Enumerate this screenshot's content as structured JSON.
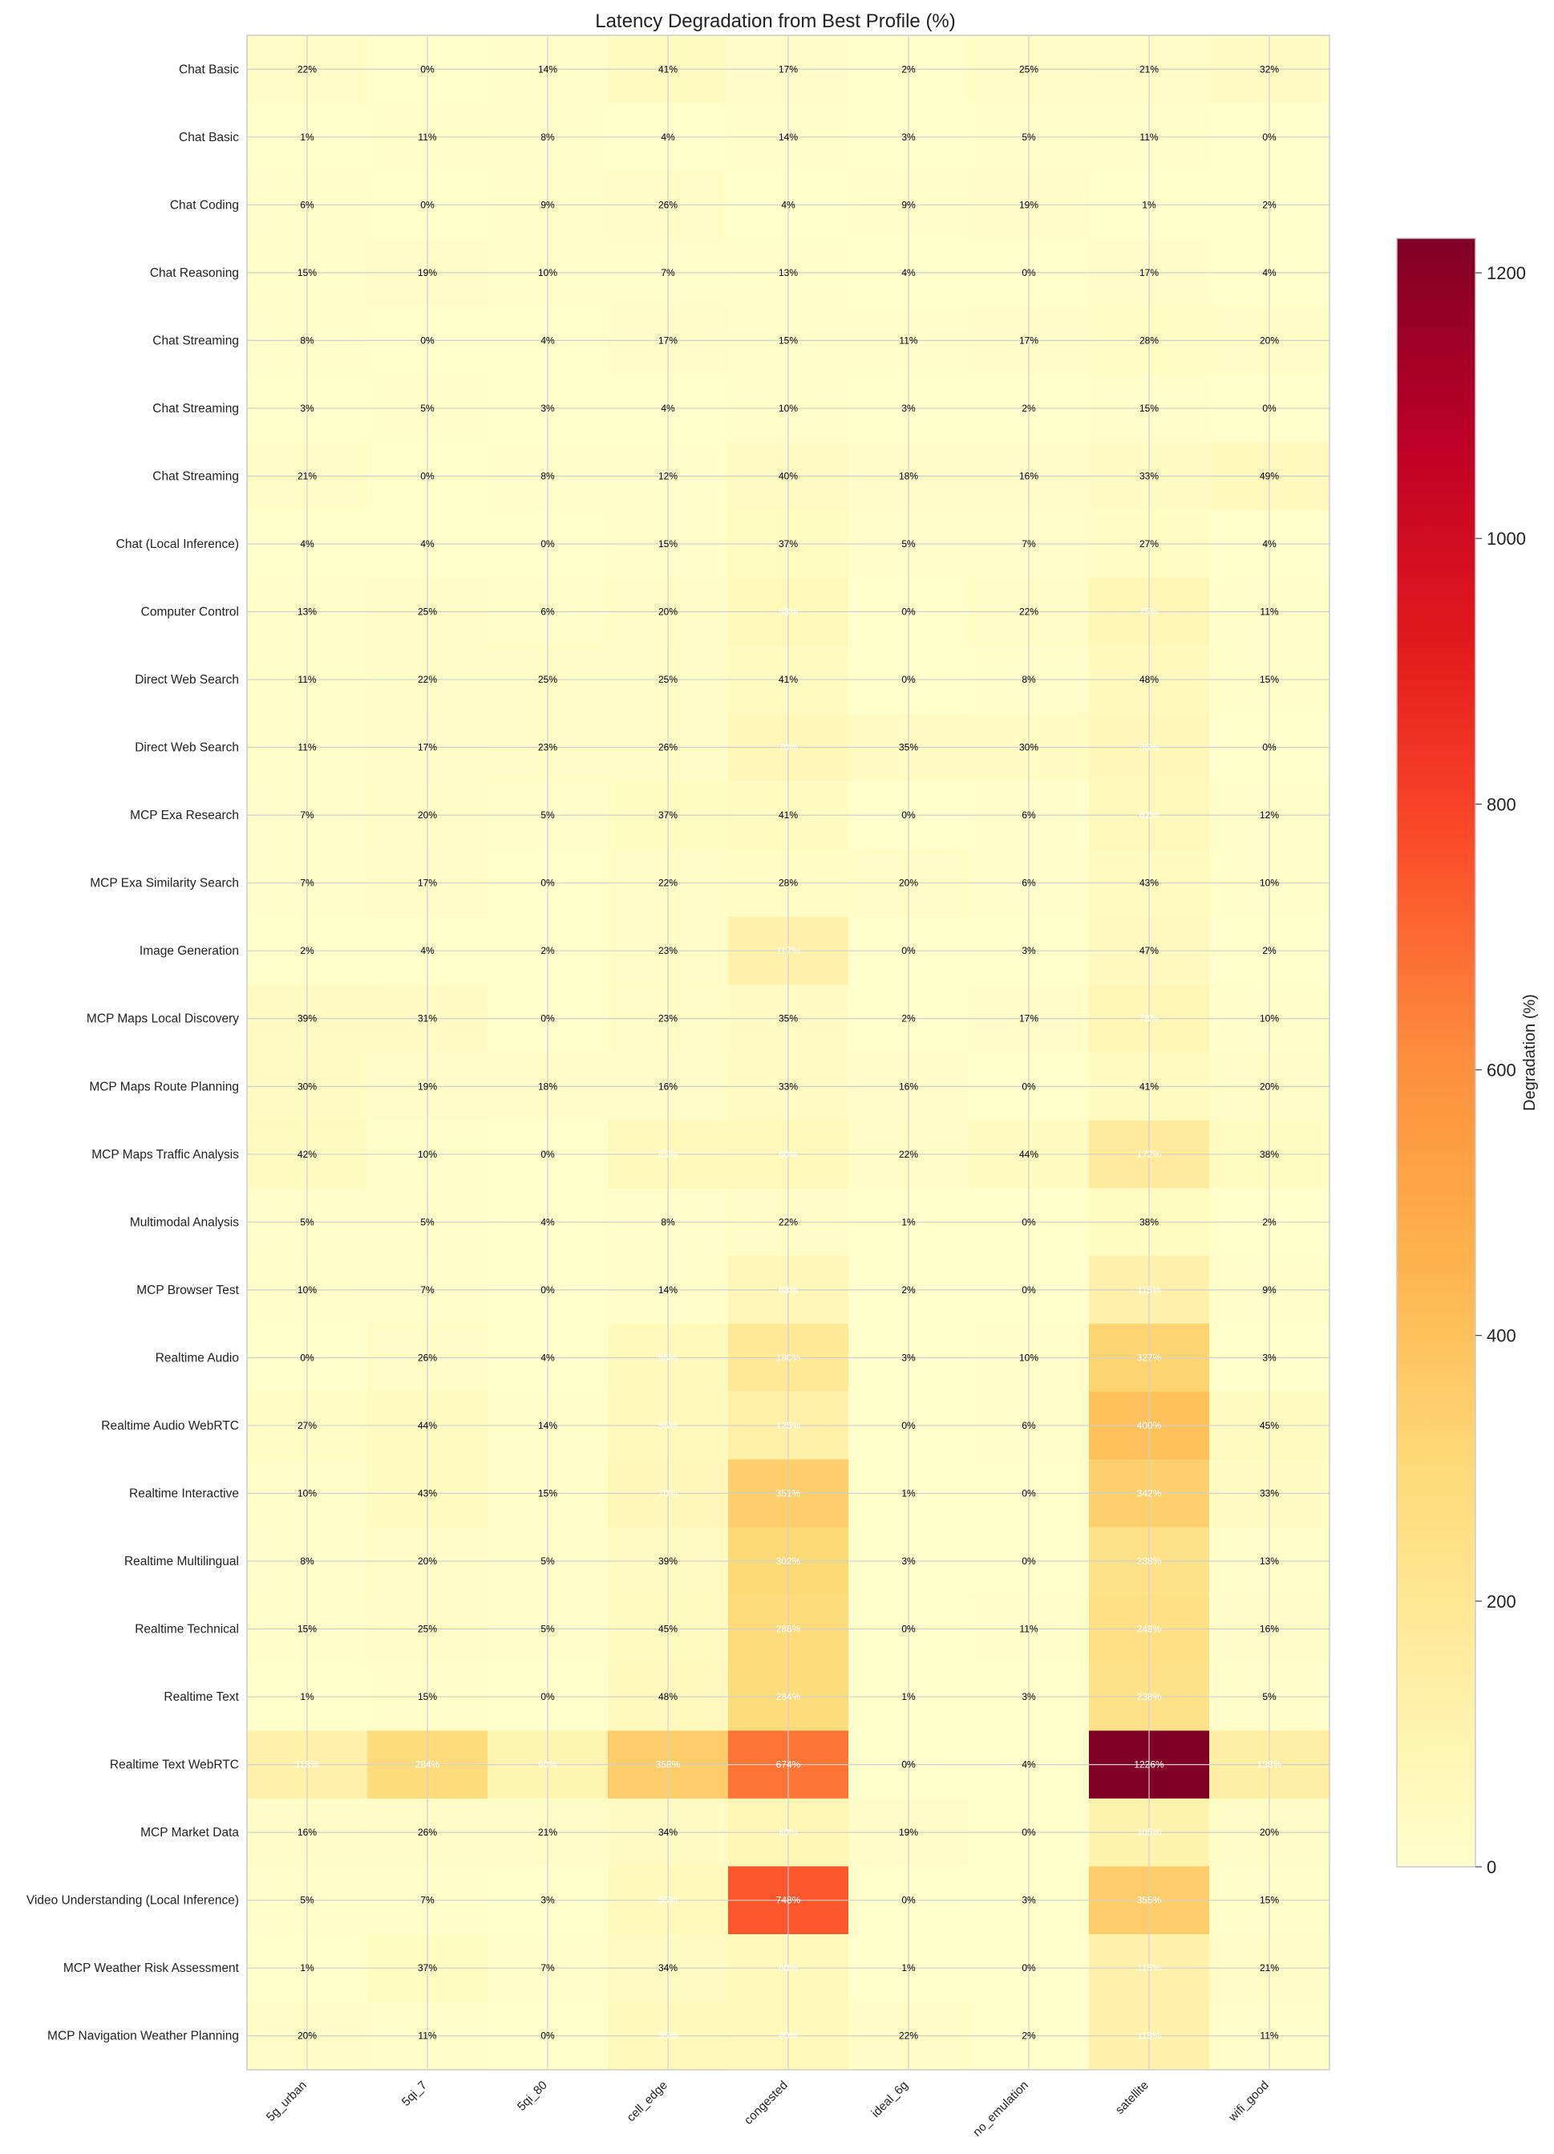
{
  "chart_data": {
    "type": "heatmap",
    "title": "Latency Degradation from Best Profile (%)",
    "x": [
      "5g_urban",
      "5qi_7",
      "5qi_80",
      "cell_edge",
      "congested",
      "ideal_6g",
      "no_emulation",
      "satellite",
      "wifi_good"
    ],
    "y": [
      "Chat Basic",
      "Chat Basic",
      "Chat Coding",
      "Chat Reasoning",
      "Chat Streaming",
      "Chat Streaming",
      "Chat Streaming",
      "Chat (Local Inference)",
      "Computer Control",
      "Direct Web Search",
      "Direct Web Search",
      "MCP Exa Research",
      "MCP Exa Similarity Search",
      "Image Generation",
      "MCP Maps Local Discovery",
      "MCP Maps Route Planning",
      "MCP Maps Traffic Analysis",
      "Multimodal Analysis",
      "MCP Browser Test",
      "Realtime Audio",
      "Realtime Audio WebRTC",
      "Realtime Interactive",
      "Realtime Multilingual",
      "Realtime Technical",
      "Realtime Text",
      "Realtime Text WebRTC",
      "MCP Market Data",
      "Video Understanding (Local Inference)",
      "MCP Weather Risk Assessment",
      "MCP Navigation Weather Planning"
    ],
    "values": [
      [
        22,
        0,
        14,
        41,
        17,
        2,
        25,
        21,
        32
      ],
      [
        1,
        11,
        8,
        4,
        14,
        3,
        5,
        11,
        0
      ],
      [
        6,
        0,
        9,
        26,
        4,
        9,
        19,
        1,
        2
      ],
      [
        15,
        19,
        10,
        7,
        13,
        4,
        0,
        17,
        4
      ],
      [
        8,
        0,
        4,
        17,
        15,
        11,
        17,
        28,
        20
      ],
      [
        3,
        5,
        3,
        4,
        10,
        3,
        2,
        15,
        0
      ],
      [
        21,
        0,
        8,
        12,
        40,
        18,
        16,
        33,
        49
      ],
      [
        4,
        4,
        0,
        15,
        37,
        5,
        7,
        27,
        4
      ],
      [
        13,
        25,
        6,
        20,
        58,
        0,
        22,
        75,
        11
      ],
      [
        11,
        22,
        25,
        25,
        41,
        0,
        8,
        48,
        15
      ],
      [
        11,
        17,
        23,
        26,
        70,
        35,
        30,
        65,
        0
      ],
      [
        7,
        20,
        5,
        37,
        41,
        0,
        6,
        62,
        12
      ],
      [
        7,
        17,
        0,
        22,
        28,
        20,
        6,
        43,
        10
      ],
      [
        2,
        4,
        2,
        23,
        117,
        0,
        3,
        47,
        2
      ],
      [
        39,
        31,
        0,
        23,
        35,
        2,
        17,
        78,
        10
      ],
      [
        30,
        19,
        18,
        16,
        33,
        16,
        0,
        41,
        20
      ],
      [
        42,
        10,
        0,
        55,
        60,
        22,
        44,
        172,
        38
      ],
      [
        5,
        5,
        4,
        8,
        22,
        1,
        0,
        38,
        2
      ],
      [
        10,
        7,
        0,
        14,
        68,
        2,
        0,
        115,
        9
      ],
      [
        0,
        26,
        4,
        55,
        190,
        3,
        10,
        327,
        3
      ],
      [
        27,
        44,
        14,
        55,
        125,
        0,
        6,
        400,
        45
      ],
      [
        10,
        43,
        15,
        70,
        351,
        1,
        0,
        342,
        33
      ],
      [
        8,
        20,
        5,
        39,
        302,
        3,
        0,
        238,
        13
      ],
      [
        15,
        25,
        5,
        45,
        286,
        0,
        11,
        249,
        16
      ],
      [
        1,
        15,
        0,
        48,
        284,
        1,
        3,
        238,
        5
      ],
      [
        118,
        284,
        90,
        358,
        674,
        0,
        4,
        1226,
        138
      ],
      [
        16,
        26,
        21,
        34,
        80,
        19,
        0,
        105,
        20
      ],
      [
        5,
        7,
        3,
        55,
        748,
        0,
        3,
        355,
        15
      ],
      [
        1,
        37,
        7,
        34,
        60,
        1,
        0,
        118,
        21
      ],
      [
        20,
        11,
        0,
        55,
        60,
        22,
        2,
        118,
        11
      ]
    ],
    "cell_labels": [
      [
        "22%",
        "0%",
        "14%",
        "41%",
        "17%",
        "2%",
        "25%",
        "21%",
        "32%"
      ],
      [
        "1%",
        "11%",
        "8%",
        "4%",
        "14%",
        "3%",
        "5%",
        "11%",
        "0%"
      ],
      [
        "6%",
        "0%",
        "9%",
        "26%",
        "4%",
        "9%",
        "19%",
        "1%",
        "2%"
      ],
      [
        "15%",
        "19%",
        "10%",
        "7%",
        "13%",
        "4%",
        "0%",
        "17%",
        "4%"
      ],
      [
        "8%",
        "0%",
        "4%",
        "17%",
        "15%",
        "11%",
        "17%",
        "28%",
        "20%"
      ],
      [
        "3%",
        "5%",
        "3%",
        "4%",
        "10%",
        "3%",
        "2%",
        "15%",
        "0%"
      ],
      [
        "21%",
        "0%",
        "8%",
        "12%",
        "40%",
        "18%",
        "16%",
        "33%",
        "49%"
      ],
      [
        "4%",
        "4%",
        "0%",
        "15%",
        "37%",
        "5%",
        "7%",
        "27%",
        "4%"
      ],
      [
        "13%",
        "25%",
        "6%",
        "20%",
        "58%",
        "0%",
        "22%",
        "75%",
        "11%"
      ],
      [
        "11%",
        "22%",
        "25%",
        "25%",
        "41%",
        "0%",
        "8%",
        "48%",
        "15%"
      ],
      [
        "11%",
        "17%",
        "23%",
        "26%",
        "70%",
        "35%",
        "30%",
        "65%",
        "0%"
      ],
      [
        "7%",
        "20%",
        "5%",
        "37%",
        "41%",
        "0%",
        "6%",
        "62%",
        "12%"
      ],
      [
        "7%",
        "17%",
        "0%",
        "22%",
        "28%",
        "20%",
        "6%",
        "43%",
        "10%"
      ],
      [
        "2%",
        "4%",
        "2%",
        "23%",
        "117%",
        "0%",
        "3%",
        "47%",
        "2%"
      ],
      [
        "39%",
        "31%",
        "0%",
        "23%",
        "35%",
        "2%",
        "17%",
        "78%",
        "10%"
      ],
      [
        "30%",
        "19%",
        "18%",
        "16%",
        "33%",
        "16%",
        "0%",
        "41%",
        "20%"
      ],
      [
        "42%",
        "10%",
        "0%",
        "55%",
        "60%",
        "22%",
        "44%",
        "172%",
        "38%"
      ],
      [
        "5%",
        "5%",
        "4%",
        "8%",
        "22%",
        "1%",
        "0%",
        "38%",
        "2%"
      ],
      [
        "10%",
        "7%",
        "0%",
        "14%",
        "68%",
        "2%",
        "0%",
        "115%",
        "9%"
      ],
      [
        "0%",
        "26%",
        "4%",
        "55%",
        "190%",
        "3%",
        "10%",
        "327%",
        "3%"
      ],
      [
        "27%",
        "44%",
        "14%",
        "55%",
        "125%",
        "0%",
        "6%",
        "400%",
        "45%"
      ],
      [
        "10%",
        "43%",
        "15%",
        "70%",
        "351%",
        "1%",
        "0%",
        "342%",
        "33%"
      ],
      [
        "8%",
        "20%",
        "5%",
        "39%",
        "302%",
        "3%",
        "0%",
        "238%",
        "13%"
      ],
      [
        "15%",
        "25%",
        "5%",
        "45%",
        "286%",
        "0%",
        "11%",
        "249%",
        "16%"
      ],
      [
        "1%",
        "15%",
        "0%",
        "48%",
        "284%",
        "1%",
        "3%",
        "238%",
        "5%"
      ],
      [
        "118%",
        "284%",
        "90%",
        "358%",
        "674%",
        "0%",
        "4%",
        "1226%",
        "138%"
      ],
      [
        "16%",
        "26%",
        "21%",
        "34%",
        "80%",
        "19%",
        "0%",
        "105%",
        "20%"
      ],
      [
        "5%",
        "7%",
        "3%",
        "55%",
        "748%",
        "0%",
        "3%",
        "355%",
        "15%"
      ],
      [
        "1%",
        "37%",
        "7%",
        "34%",
        "60%",
        "1%",
        "0%",
        "118%",
        "21%"
      ],
      [
        "20%",
        "11%",
        "0%",
        "55%",
        "60%",
        "22%",
        "2%",
        "118%",
        "11%"
      ]
    ],
    "colorbar": {
      "label": "Degradation (%)",
      "ticks": [
        0,
        200,
        400,
        600,
        800,
        1000,
        1200
      ],
      "range": [
        0,
        1226
      ],
      "colormap": "YlOrRd",
      "colors": [
        "#ffffcc",
        "#ffeda0",
        "#fed976",
        "#feb24c",
        "#fd8d3c",
        "#fc4e2a",
        "#e31a1c",
        "#bd0026",
        "#800026"
      ]
    },
    "grid": true
  }
}
